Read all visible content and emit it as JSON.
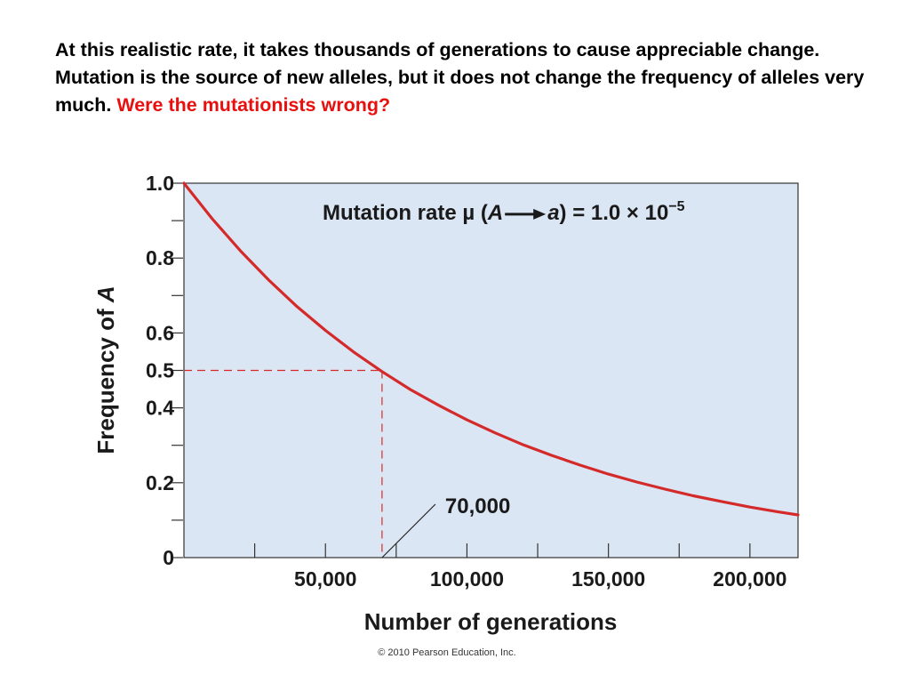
{
  "intro": {
    "text": "At this realistic rate, it takes thousands of generations to cause appreciable change.  Mutation is the source of new alleles, but it does not change the frequency of alleles very much.",
    "highlight": "Were the mutationists wrong?"
  },
  "chart_data": {
    "type": "line",
    "title": "",
    "xlabel": "Number of generations",
    "ylabel_prefix": "Frequency of ",
    "ylabel_var": "A",
    "xlim": [
      0,
      217000
    ],
    "ylim": [
      0,
      1.0
    ],
    "x_ticks": [
      {
        "value": 25000,
        "label": ""
      },
      {
        "value": 50000,
        "label": "50,000"
      },
      {
        "value": 75000,
        "label": ""
      },
      {
        "value": 100000,
        "label": "100,000"
      },
      {
        "value": 125000,
        "label": ""
      },
      {
        "value": 150000,
        "label": "150,000"
      },
      {
        "value": 175000,
        "label": ""
      },
      {
        "value": 200000,
        "label": "200,000"
      }
    ],
    "y_ticks": [
      {
        "value": 0,
        "label": "0"
      },
      {
        "value": 0.1,
        "label": ""
      },
      {
        "value": 0.2,
        "label": "0.2"
      },
      {
        "value": 0.3,
        "label": ""
      },
      {
        "value": 0.4,
        "label": "0.4"
      },
      {
        "value": 0.5,
        "label": "0.5"
      },
      {
        "value": 0.6,
        "label": "0.6"
      },
      {
        "value": 0.7,
        "label": ""
      },
      {
        "value": 0.8,
        "label": "0.8"
      },
      {
        "value": 0.9,
        "label": ""
      },
      {
        "value": 1.0,
        "label": "1.0"
      }
    ],
    "series": [
      {
        "color": "#d42a2a",
        "x": [
          0,
          10000,
          20000,
          30000,
          40000,
          50000,
          60000,
          70000,
          80000,
          90000,
          100000,
          110000,
          120000,
          130000,
          140000,
          150000,
          160000,
          170000,
          180000,
          190000,
          200000,
          210000,
          217000
        ],
        "y": [
          1.0,
          0.905,
          0.819,
          0.741,
          0.67,
          0.607,
          0.549,
          0.497,
          0.449,
          0.407,
          0.368,
          0.333,
          0.301,
          0.273,
          0.247,
          0.223,
          0.202,
          0.183,
          0.165,
          0.15,
          0.135,
          0.122,
          0.114
        ]
      }
    ],
    "rate_annotation": {
      "prefix": "Mutation rate ",
      "mu": "µ",
      "open": " (",
      "from": "A",
      "to": "a",
      "close": ") = 1.0 × 10",
      "exponent": "−5"
    },
    "guide": {
      "x": 70000,
      "y": 0.5,
      "color": "#d42a2a"
    },
    "callout": {
      "label": "70,000",
      "x": 70000
    },
    "background_color": "#dbe6f4",
    "grid": false
  },
  "credit": "© 2010 Pearson Education, Inc."
}
